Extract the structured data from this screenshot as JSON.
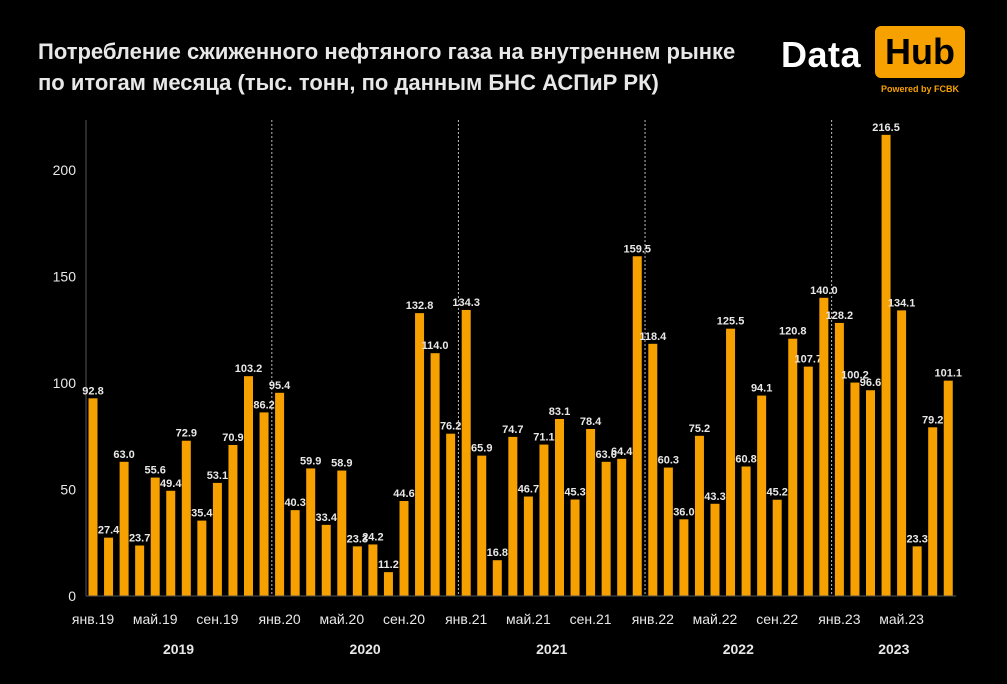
{
  "title": "Потребление сжиженного нефтяного газа на внутреннем рынке по итогам месяца (тыс. тонн, по данным БНС АСПиР РК)",
  "logo": {
    "word1": "Data",
    "word2": "Hub",
    "tagline": "Powered by FCBK"
  },
  "colors": {
    "background": "#000000",
    "bar": "#f7a100",
    "text": "#e8e8e8",
    "axis": "#555555"
  },
  "chart_data": {
    "type": "bar",
    "title": "Потребление сжиженного нефтяного газа на внутреннем рынке по итогам месяца (тыс. тонн, по данным БНС АСПиР РК)",
    "xlabel": "",
    "ylabel": "",
    "ylim": [
      0,
      220
    ],
    "yticks": [
      0,
      50,
      100,
      150,
      200
    ],
    "grid": false,
    "values": [
      92.8,
      27.4,
      63.0,
      23.7,
      55.6,
      49.4,
      72.9,
      35.4,
      53.1,
      70.9,
      103.2,
      86.2,
      95.4,
      40.3,
      59.9,
      33.4,
      58.9,
      23.3,
      24.2,
      11.2,
      44.6,
      132.8,
      114.0,
      76.2,
      134.3,
      65.9,
      16.8,
      74.7,
      46.7,
      71.1,
      83.1,
      45.3,
      78.4,
      63.0,
      64.4,
      159.5,
      118.4,
      60.3,
      36.0,
      75.2,
      43.3,
      125.5,
      60.8,
      94.1,
      45.2,
      120.8,
      107.7,
      140.0,
      128.2,
      100.2,
      96.6,
      216.5,
      134.1,
      23.3,
      79.2,
      101.1
    ],
    "value_labels": [
      "92.8",
      "27.4",
      "63.0",
      "23.7",
      "55.6",
      "49.4",
      "72.9",
      "35.4",
      "53.1",
      "70.9",
      "103.2",
      "86.2",
      "95.4",
      "40.3",
      "59.9",
      "33.4",
      "58.9",
      "23.3",
      "24.2",
      "11.2",
      "44.6",
      "132.8",
      "114.0",
      "76.2",
      "134.3",
      "65.9",
      "16.8",
      "74.7",
      "46.7",
      "71.1",
      "83.1",
      "45.3",
      "78.4",
      "63.0",
      "64.4",
      "159.5",
      "118.4",
      "60.3",
      "36.0",
      "75.2",
      "43.3",
      "125.5",
      "60.8",
      "94.1",
      "45.2",
      "120.8",
      "107.7",
      "140.0",
      "128.2",
      "100.2",
      "96.6",
      "216.5",
      "134.1",
      "23.3",
      "79.2",
      "101.1"
    ],
    "x_tick_labels": [
      {
        "index": 0,
        "label": "янв.19"
      },
      {
        "index": 4,
        "label": "май.19"
      },
      {
        "index": 8,
        "label": "сен.19"
      },
      {
        "index": 12,
        "label": "янв.20"
      },
      {
        "index": 16,
        "label": "май.20"
      },
      {
        "index": 20,
        "label": "сен.20"
      },
      {
        "index": 24,
        "label": "янв.21"
      },
      {
        "index": 28,
        "label": "май.21"
      },
      {
        "index": 32,
        "label": "сен.21"
      },
      {
        "index": 36,
        "label": "янв.22"
      },
      {
        "index": 40,
        "label": "май.22"
      },
      {
        "index": 44,
        "label": "сен.22"
      },
      {
        "index": 48,
        "label": "янв.23"
      },
      {
        "index": 52,
        "label": "май.23"
      }
    ],
    "year_groups": [
      {
        "label": "2019",
        "start": 0,
        "end": 11
      },
      {
        "label": "2020",
        "start": 12,
        "end": 23
      },
      {
        "label": "2021",
        "start": 24,
        "end": 35
      },
      {
        "label": "2022",
        "start": 36,
        "end": 47
      },
      {
        "label": "2023",
        "start": 48,
        "end": 55
      }
    ],
    "year_separators_after": [
      11,
      23,
      35,
      47
    ]
  }
}
